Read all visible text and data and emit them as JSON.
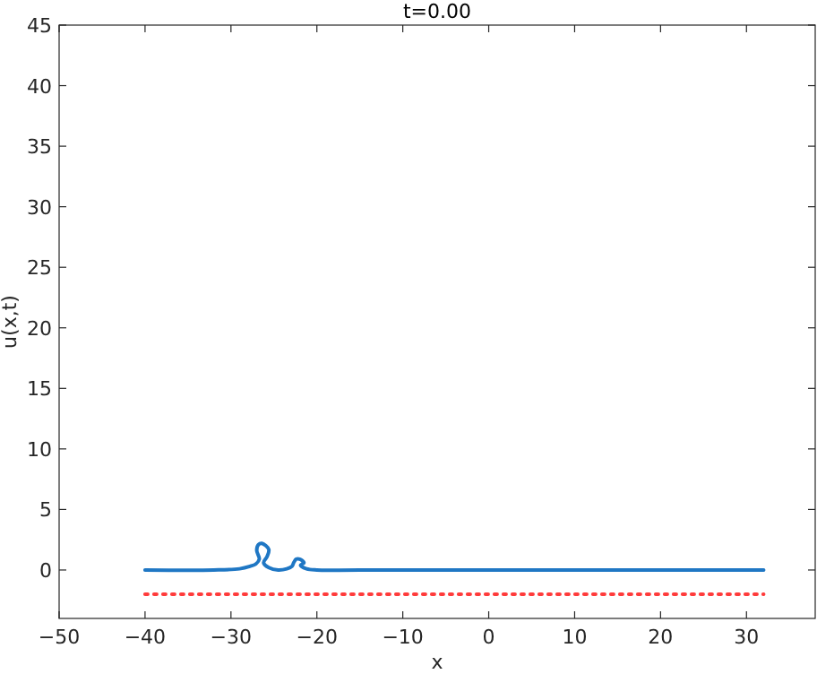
{
  "chart_data": {
    "type": "line",
    "title": "t=0.00",
    "xlabel": "x",
    "ylabel": "u(x,t)",
    "xlim": [
      -50,
      38
    ],
    "xticks": [
      -50,
      -40,
      -30,
      -20,
      -10,
      0,
      10,
      20,
      30
    ],
    "ylim": [
      -4,
      45
    ],
    "yticks": [
      0,
      5,
      10,
      15,
      20,
      25,
      30,
      35,
      40,
      45
    ],
    "grid": false,
    "series": [
      {
        "color": "#1f77c4",
        "line_style": "solid",
        "x": [
          -40,
          -32,
          -29,
          -27.8,
          -27.1,
          -26.7,
          -27.0,
          -26.8,
          -26.4,
          -25.6,
          -25.8,
          -26.2,
          -25.6,
          -24.5,
          -23.5,
          -22.9,
          -22.7,
          -22.4,
          -22.0,
          -21.5,
          -21.9,
          -21.2,
          -20,
          -15,
          32
        ],
        "values": [
          0,
          0,
          0.1,
          0.3,
          0.5,
          0.9,
          1.6,
          2.1,
          2.2,
          1.7,
          1.1,
          0.6,
          0.2,
          0,
          0.1,
          0.3,
          0.6,
          0.9,
          0.9,
          0.6,
          0.4,
          0.1,
          0,
          0,
          0
        ]
      },
      {
        "color": "#ff3b3b",
        "line_style": "dotted",
        "x": [
          -40,
          32
        ],
        "values": [
          -2,
          -2
        ]
      }
    ]
  }
}
